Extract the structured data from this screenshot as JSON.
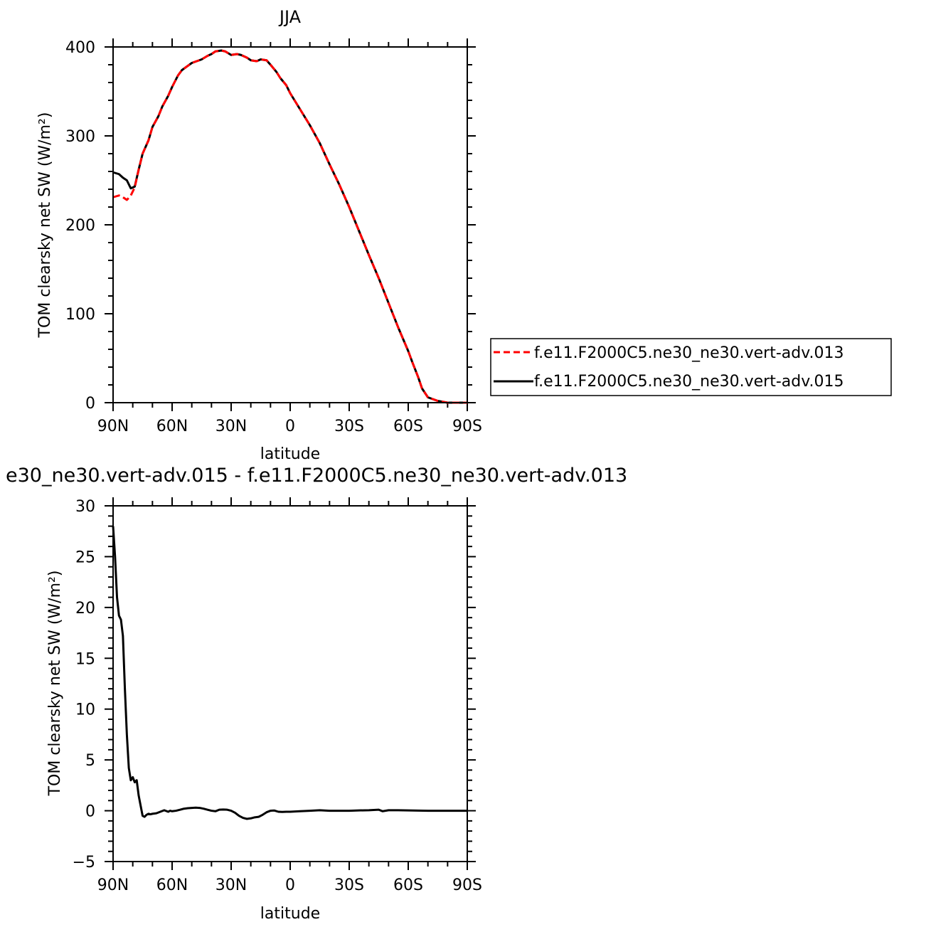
{
  "top_title": "JJA",
  "bottom_title": "e30_ne30.vert-adv.015 - f.e11.F2000C5.ne30_ne30.vert-adv.013",
  "x_tick_labels": [
    "90N",
    "60N",
    "30N",
    "0",
    "30S",
    "60S",
    "90S"
  ],
  "colors": {
    "series_013": "#ff0000",
    "series_015": "#000000"
  },
  "chart_data": [
    {
      "type": "line",
      "title": "JJA",
      "xlabel": "latitude",
      "ylabel": "TOM clearsky net SW (W/m²)",
      "xlim": [
        90,
        -90
      ],
      "ylim": [
        0,
        400
      ],
      "y_tick_labels": [
        "0",
        "100",
        "200",
        "300",
        "400"
      ],
      "legend_position": "right",
      "x": [
        90,
        87,
        85,
        83,
        81,
        79,
        77,
        75,
        72,
        70,
        67,
        65,
        62,
        60,
        57,
        55,
        50,
        45,
        42,
        40,
        38,
        35,
        33,
        30,
        27,
        25,
        22,
        20,
        17,
        15,
        12,
        10,
        7,
        5,
        2,
        0,
        -5,
        -10,
        -15,
        -20,
        -25,
        -30,
        -35,
        -40,
        -45,
        -50,
        -55,
        -60,
        -62,
        -65,
        -67,
        -70,
        -75,
        -80,
        -85,
        -90
      ],
      "series": [
        {
          "name": "f.e11.F2000C5.ne30_ne30.vert-adv.013",
          "style": "dashed",
          "values": [
            231,
            233,
            231,
            228,
            233,
            242,
            262,
            280,
            295,
            310,
            322,
            333,
            345,
            355,
            368,
            374,
            382,
            386,
            390,
            392,
            395,
            396,
            395,
            391,
            392,
            391,
            388,
            385,
            384,
            386,
            385,
            380,
            372,
            365,
            357,
            348,
            330,
            312,
            292,
            268,
            245,
            220,
            193,
            166,
            140,
            112,
            84,
            58,
            46,
            29,
            16,
            6,
            2,
            0,
            0,
            0
          ]
        },
        {
          "name": "f.e11.F2000C5.ne30_ne30.vert-adv.015",
          "style": "solid",
          "values": [
            259,
            257,
            253,
            250,
            241,
            243,
            262,
            280,
            295,
            310,
            322,
            333,
            345,
            355,
            368,
            374,
            382,
            386,
            390,
            392,
            395,
            396,
            395,
            391,
            392,
            391,
            388,
            385,
            384,
            386,
            385,
            380,
            372,
            365,
            357,
            348,
            330,
            312,
            292,
            268,
            245,
            220,
            193,
            166,
            140,
            112,
            84,
            58,
            46,
            29,
            16,
            6,
            2,
            0,
            0,
            0
          ]
        }
      ]
    },
    {
      "type": "line",
      "title": "e30_ne30.vert-adv.015 - f.e11.F2000C5.ne30_ne30.vert-adv.013",
      "xlabel": "latitude",
      "ylabel": "TOM clearsky net SW (W/m²)",
      "xlim": [
        90,
        -90
      ],
      "ylim": [
        -5,
        30
      ],
      "y_tick_labels": [
        "-5",
        "0",
        "5",
        "10",
        "15",
        "20",
        "25",
        "30"
      ],
      "x": [
        90,
        89,
        88,
        87,
        86,
        85,
        84,
        83,
        82,
        81,
        80,
        79,
        78,
        77,
        76,
        75,
        74,
        73,
        72,
        71,
        70,
        68,
        66,
        64,
        62,
        61,
        60,
        58,
        56,
        54,
        52,
        50,
        48,
        46,
        44,
        42,
        40,
        38,
        36,
        34,
        32,
        30,
        28,
        26,
        24,
        22,
        20,
        18,
        16,
        14,
        12,
        10,
        8,
        6,
        4,
        2,
        0,
        -5,
        -10,
        -15,
        -20,
        -25,
        -30,
        -35,
        -40,
        -45,
        -47,
        -50,
        -55,
        -60,
        -70,
        -80,
        -90
      ],
      "series": [
        {
          "name": "",
          "style": "solid",
          "values": [
            28,
            25,
            21,
            19.2,
            18.8,
            17.2,
            12,
            7.5,
            4.2,
            3,
            3.3,
            2.8,
            3,
            1.5,
            0.5,
            -0.5,
            -0.6,
            -0.4,
            -0.3,
            -0.35,
            -0.3,
            -0.25,
            -0.1,
            0.05,
            -0.1,
            0,
            -0.05,
            0,
            0.1,
            0.2,
            0.25,
            0.28,
            0.3,
            0.28,
            0.2,
            0.1,
            0,
            -0.05,
            0.1,
            0.12,
            0.1,
            0,
            -0.2,
            -0.5,
            -0.7,
            -0.8,
            -0.75,
            -0.65,
            -0.6,
            -0.4,
            -0.15,
            0,
            0.02,
            -0.1,
            -0.12,
            -0.1,
            -0.1,
            -0.05,
            0,
            0.05,
            0,
            0,
            0,
            0.03,
            0.05,
            0.1,
            -0.05,
            0.05,
            0.05,
            0.03,
            0,
            0,
            0
          ]
        }
      ]
    }
  ]
}
